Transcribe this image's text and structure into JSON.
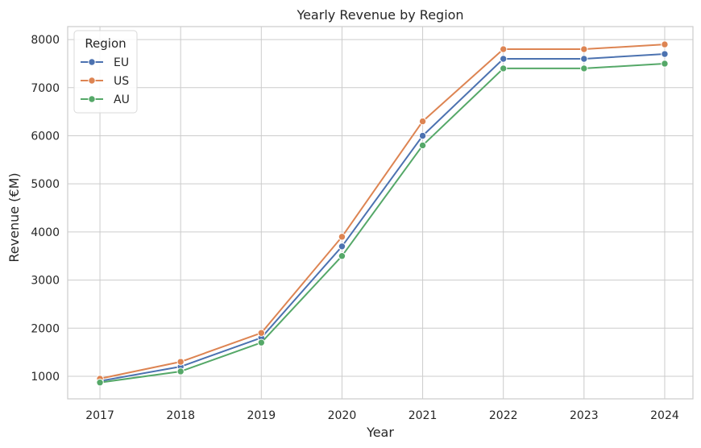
{
  "chart_data": {
    "type": "line",
    "title": "Yearly Revenue by Region",
    "xlabel": "Year",
    "ylabel": "Revenue (€M)",
    "x": [
      2017,
      2018,
      2019,
      2020,
      2021,
      2022,
      2023,
      2024
    ],
    "x_tick_labels": [
      "2017",
      "2018",
      "2019",
      "2020",
      "2021",
      "2022",
      "2023",
      "2024"
    ],
    "y_ticks": [
      1000,
      2000,
      3000,
      4000,
      5000,
      6000,
      7000,
      8000
    ],
    "y_tick_labels": [
      "1000",
      "2000",
      "3000",
      "4000",
      "5000",
      "6000",
      "7000",
      "8000"
    ],
    "ylim": [
      530,
      8270
    ],
    "xlim": [
      2016.6,
      2024.35
    ],
    "grid": true,
    "legend": {
      "title": "Region",
      "placement": "top-left"
    },
    "series": [
      {
        "name": "EU",
        "color": "#4c72b0",
        "values": [
          900,
          1200,
          1800,
          3700,
          6000,
          7600,
          7600,
          7700
        ]
      },
      {
        "name": "US",
        "color": "#dd8452",
        "values": [
          950,
          1300,
          1900,
          3900,
          6300,
          7800,
          7800,
          7900
        ]
      },
      {
        "name": "AU",
        "color": "#55a868",
        "values": [
          870,
          1100,
          1700,
          3500,
          5800,
          7400,
          7400,
          7500
        ]
      }
    ]
  }
}
